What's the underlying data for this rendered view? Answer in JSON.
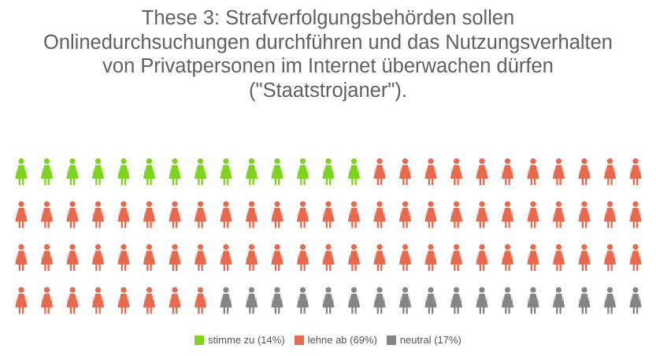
{
  "chart_data": {
    "type": "pictogram",
    "title_lines": [
      "These 3: Strafverfolgungsbehörden sollen",
      "Onlinedurchsuchungen durchführen und das Nutzungsverhalten",
      "von Privatpersonen im Internet überwachen dürfen",
      "(\"Staatstrojaner\")."
    ],
    "icon": "woman-icon",
    "rows": 4,
    "columns": 25,
    "categories": [
      {
        "key": "zustimmung",
        "label": "stimme zu (14%)",
        "count": 14,
        "percent": 14,
        "color": "#7ed321"
      },
      {
        "key": "ablehnung",
        "label": "lehne ab (69%)",
        "count": 69,
        "percent": 69,
        "color": "#e8694d"
      },
      {
        "key": "neutral",
        "label": "neutral (17%)",
        "count": 17,
        "percent": 17,
        "color": "#858585"
      }
    ]
  }
}
